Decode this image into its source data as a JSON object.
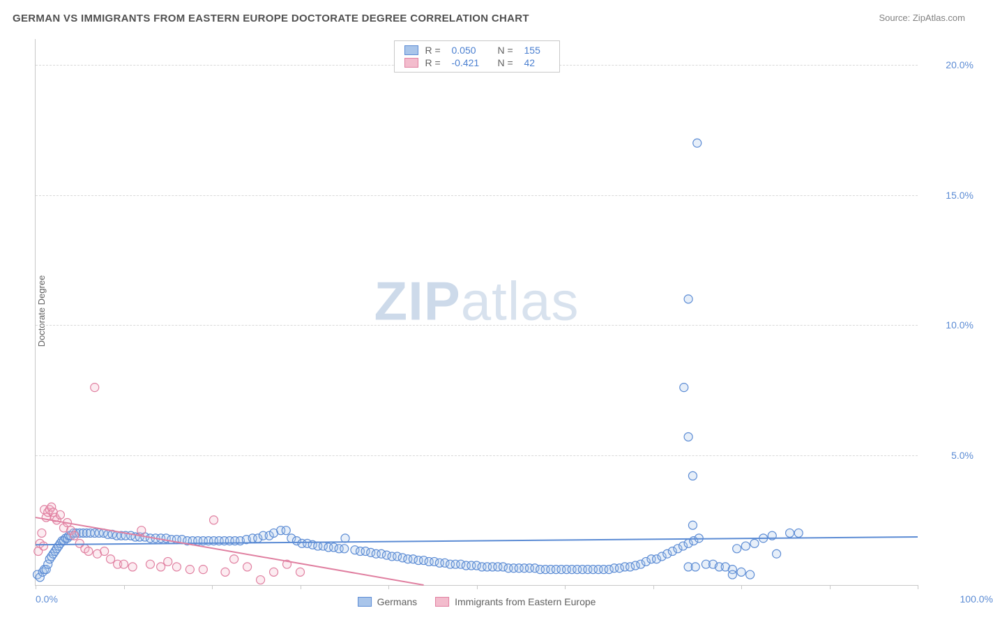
{
  "header": {
    "title": "GERMAN VS IMMIGRANTS FROM EASTERN EUROPE DOCTORATE DEGREE CORRELATION CHART",
    "source_prefix": "Source: ",
    "source_name": "ZipAtlas.com"
  },
  "watermark": {
    "zip": "ZIP",
    "atlas": "atlas"
  },
  "chart": {
    "type": "scatter",
    "ylabel": "Doctorate Degree",
    "xlim": [
      0,
      100
    ],
    "ylim": [
      0,
      21
    ],
    "xtick_positions": [
      0,
      10,
      20,
      30,
      40,
      50,
      60,
      70,
      80,
      90,
      100
    ],
    "xtick_labels_shown": {
      "0": "0.0%",
      "100": "100.0%"
    },
    "ytick_positions": [
      5,
      10,
      15,
      20
    ],
    "ytick_labels": {
      "5": "5.0%",
      "10": "10.0%",
      "15": "15.0%",
      "20": "20.0%"
    },
    "grid_color": "#d8d8d8",
    "axis_color": "#c8c8c8",
    "background_color": "#ffffff",
    "tick_label_color": "#5b8bd4",
    "ylabel_color": "#606060",
    "marker_radius": 6,
    "marker_fill_opacity": 0.28,
    "marker_stroke_width": 1.2,
    "line_width": 2,
    "series": [
      {
        "id": "germans",
        "label": "Germans",
        "color_stroke": "#5b8bd4",
        "color_fill": "#a9c5ea",
        "R": "0.050",
        "N": "155",
        "trend": {
          "x1": 0,
          "y1": 1.55,
          "x2": 100,
          "y2": 1.85
        },
        "points": [
          [
            0.2,
            0.4
          ],
          [
            0.5,
            0.3
          ],
          [
            0.8,
            0.5
          ],
          [
            1.0,
            0.6
          ],
          [
            1.2,
            0.6
          ],
          [
            1.4,
            0.8
          ],
          [
            1.6,
            1.0
          ],
          [
            1.8,
            1.1
          ],
          [
            2.0,
            1.2
          ],
          [
            2.2,
            1.3
          ],
          [
            2.4,
            1.4
          ],
          [
            2.6,
            1.5
          ],
          [
            2.8,
            1.6
          ],
          [
            3.0,
            1.7
          ],
          [
            3.2,
            1.7
          ],
          [
            3.4,
            1.8
          ],
          [
            3.6,
            1.8
          ],
          [
            3.8,
            1.9
          ],
          [
            4.0,
            1.9
          ],
          [
            4.3,
            2.0
          ],
          [
            4.6,
            2.0
          ],
          [
            5.0,
            2.0
          ],
          [
            5.4,
            2.0
          ],
          [
            5.8,
            2.0
          ],
          [
            6.2,
            2.0
          ],
          [
            6.7,
            2.0
          ],
          [
            7.2,
            2.0
          ],
          [
            7.7,
            2.0
          ],
          [
            8.2,
            1.95
          ],
          [
            8.7,
            1.95
          ],
          [
            9.2,
            1.9
          ],
          [
            9.7,
            1.9
          ],
          [
            10.2,
            1.9
          ],
          [
            10.8,
            1.9
          ],
          [
            11.3,
            1.85
          ],
          [
            11.8,
            1.85
          ],
          [
            12.4,
            1.85
          ],
          [
            13.0,
            1.8
          ],
          [
            13.6,
            1.8
          ],
          [
            14.2,
            1.8
          ],
          [
            14.8,
            1.8
          ],
          [
            15.4,
            1.75
          ],
          [
            16.0,
            1.75
          ],
          [
            16.6,
            1.75
          ],
          [
            17.2,
            1.7
          ],
          [
            17.8,
            1.7
          ],
          [
            18.4,
            1.7
          ],
          [
            19.0,
            1.7
          ],
          [
            19.6,
            1.7
          ],
          [
            20.2,
            1.7
          ],
          [
            20.8,
            1.7
          ],
          [
            21.4,
            1.7
          ],
          [
            22.0,
            1.7
          ],
          [
            22.6,
            1.7
          ],
          [
            23.2,
            1.7
          ],
          [
            23.9,
            1.75
          ],
          [
            24.6,
            1.8
          ],
          [
            25.2,
            1.8
          ],
          [
            25.8,
            1.9
          ],
          [
            26.5,
            1.9
          ],
          [
            27.0,
            2.0
          ],
          [
            27.8,
            2.1
          ],
          [
            28.4,
            2.1
          ],
          [
            29.0,
            1.8
          ],
          [
            29.6,
            1.7
          ],
          [
            30.2,
            1.6
          ],
          [
            30.8,
            1.6
          ],
          [
            31.4,
            1.55
          ],
          [
            32.0,
            1.5
          ],
          [
            32.6,
            1.5
          ],
          [
            33.2,
            1.45
          ],
          [
            33.8,
            1.45
          ],
          [
            34.4,
            1.4
          ],
          [
            35.0,
            1.4
          ],
          [
            35.1,
            1.8
          ],
          [
            36.2,
            1.35
          ],
          [
            36.8,
            1.3
          ],
          [
            37.4,
            1.3
          ],
          [
            38.0,
            1.25
          ],
          [
            38.6,
            1.2
          ],
          [
            39.2,
            1.2
          ],
          [
            39.8,
            1.15
          ],
          [
            40.4,
            1.1
          ],
          [
            41.0,
            1.1
          ],
          [
            41.6,
            1.05
          ],
          [
            42.2,
            1.0
          ],
          [
            42.8,
            1.0
          ],
          [
            43.4,
            0.95
          ],
          [
            44.0,
            0.95
          ],
          [
            44.6,
            0.9
          ],
          [
            45.2,
            0.9
          ],
          [
            45.8,
            0.85
          ],
          [
            46.4,
            0.85
          ],
          [
            47.0,
            0.8
          ],
          [
            47.6,
            0.8
          ],
          [
            48.2,
            0.8
          ],
          [
            48.8,
            0.75
          ],
          [
            49.4,
            0.75
          ],
          [
            50.0,
            0.75
          ],
          [
            50.6,
            0.7
          ],
          [
            51.2,
            0.7
          ],
          [
            51.8,
            0.7
          ],
          [
            52.4,
            0.7
          ],
          [
            53.0,
            0.7
          ],
          [
            53.6,
            0.65
          ],
          [
            54.2,
            0.65
          ],
          [
            54.8,
            0.65
          ],
          [
            55.4,
            0.65
          ],
          [
            56.0,
            0.65
          ],
          [
            56.6,
            0.65
          ],
          [
            57.2,
            0.6
          ],
          [
            57.8,
            0.6
          ],
          [
            58.4,
            0.6
          ],
          [
            59.0,
            0.6
          ],
          [
            59.6,
            0.6
          ],
          [
            60.2,
            0.6
          ],
          [
            60.8,
            0.6
          ],
          [
            61.4,
            0.6
          ],
          [
            62.0,
            0.6
          ],
          [
            62.6,
            0.6
          ],
          [
            63.2,
            0.6
          ],
          [
            63.8,
            0.6
          ],
          [
            64.4,
            0.6
          ],
          [
            65.0,
            0.6
          ],
          [
            65.6,
            0.65
          ],
          [
            66.2,
            0.65
          ],
          [
            66.8,
            0.7
          ],
          [
            67.4,
            0.7
          ],
          [
            68.0,
            0.75
          ],
          [
            68.6,
            0.8
          ],
          [
            69.2,
            0.9
          ],
          [
            69.8,
            1.0
          ],
          [
            70.4,
            1.0
          ],
          [
            71.0,
            1.1
          ],
          [
            71.6,
            1.2
          ],
          [
            72.2,
            1.3
          ],
          [
            72.8,
            1.4
          ],
          [
            73.4,
            1.5
          ],
          [
            74.0,
            1.6
          ],
          [
            74.6,
            1.7
          ],
          [
            75.2,
            1.8
          ],
          [
            74.0,
            0.7
          ],
          [
            74.8,
            0.7
          ],
          [
            76.0,
            0.8
          ],
          [
            76.8,
            0.8
          ],
          [
            77.5,
            0.7
          ],
          [
            78.2,
            0.7
          ],
          [
            79.0,
            0.6
          ],
          [
            75.0,
            17.0
          ],
          [
            74.0,
            11.0
          ],
          [
            73.5,
            7.6
          ],
          [
            74.0,
            5.7
          ],
          [
            74.5,
            4.2
          ],
          [
            74.5,
            2.3
          ],
          [
            79.5,
            1.4
          ],
          [
            80.5,
            1.5
          ],
          [
            81.5,
            1.6
          ],
          [
            82.5,
            1.8
          ],
          [
            83.5,
            1.9
          ],
          [
            84.0,
            1.2
          ],
          [
            85.5,
            2.0
          ],
          [
            86.5,
            2.0
          ],
          [
            79.0,
            0.4
          ],
          [
            80.0,
            0.5
          ],
          [
            81.0,
            0.4
          ]
        ]
      },
      {
        "id": "immigrants_ee",
        "label": "Immigrants from Eastern Europe",
        "color_stroke": "#e07fa0",
        "color_fill": "#f3bccd",
        "R": "-0.421",
        "N": "42",
        "trend": {
          "x1": 0,
          "y1": 2.6,
          "x2": 44,
          "y2": 0.0
        },
        "points": [
          [
            0.3,
            1.3
          ],
          [
            0.5,
            1.6
          ],
          [
            0.7,
            2.0
          ],
          [
            0.9,
            1.5
          ],
          [
            1.0,
            2.9
          ],
          [
            1.2,
            2.6
          ],
          [
            1.4,
            2.8
          ],
          [
            1.6,
            2.9
          ],
          [
            1.8,
            3.0
          ],
          [
            2.0,
            2.8
          ],
          [
            2.2,
            2.6
          ],
          [
            2.4,
            2.5
          ],
          [
            2.8,
            2.7
          ],
          [
            3.2,
            2.2
          ],
          [
            3.6,
            2.4
          ],
          [
            4.0,
            2.1
          ],
          [
            4.4,
            1.9
          ],
          [
            5.0,
            1.6
          ],
          [
            5.6,
            1.4
          ],
          [
            6.0,
            1.3
          ],
          [
            6.7,
            7.6
          ],
          [
            7.0,
            1.2
          ],
          [
            7.8,
            1.3
          ],
          [
            8.5,
            1.0
          ],
          [
            9.3,
            0.8
          ],
          [
            10.0,
            0.8
          ],
          [
            11.0,
            0.7
          ],
          [
            12.0,
            2.1
          ],
          [
            13.0,
            0.8
          ],
          [
            14.2,
            0.7
          ],
          [
            15.0,
            0.9
          ],
          [
            16.0,
            0.7
          ],
          [
            17.5,
            0.6
          ],
          [
            19.0,
            0.6
          ],
          [
            20.2,
            2.5
          ],
          [
            21.5,
            0.5
          ],
          [
            22.5,
            1.0
          ],
          [
            24.0,
            0.7
          ],
          [
            25.5,
            0.2
          ],
          [
            27.0,
            0.5
          ],
          [
            28.5,
            0.8
          ],
          [
            30.0,
            0.5
          ]
        ]
      }
    ],
    "legend_bottom": [
      {
        "label": "Germans",
        "fill": "#a9c5ea",
        "stroke": "#5b8bd4"
      },
      {
        "label": "Immigrants from Eastern Europe",
        "fill": "#f3bccd",
        "stroke": "#e07fa0"
      }
    ]
  }
}
